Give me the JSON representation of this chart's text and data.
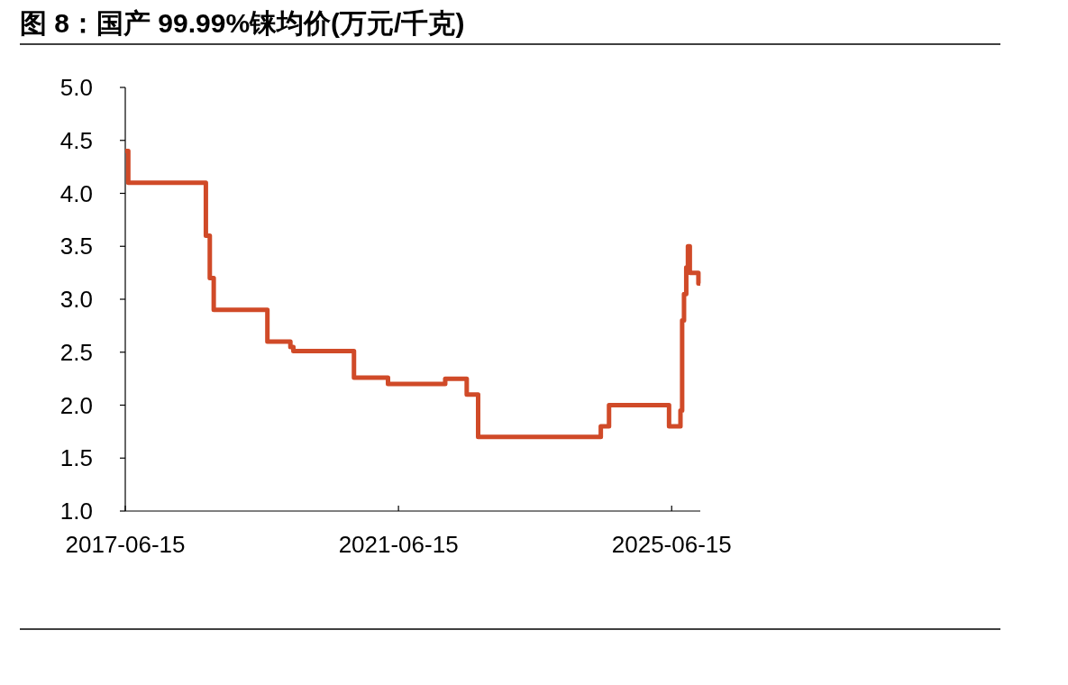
{
  "chart_data": {
    "type": "step",
    "title": "图 8：国产 99.99%铼均价(万元/千克)",
    "x": [
      "2017-06-15",
      "2017-07-01",
      "2018-08-20",
      "2018-09-10",
      "2018-10-01",
      "2019-07-15",
      "2019-11-15",
      "2019-12-01",
      "2020-10-20",
      "2021-04-20",
      "2022-02-20",
      "2022-06-15",
      "2022-08-15",
      "2024-06-01",
      "2024-07-15",
      "2025-06-01",
      "2025-08-01",
      "2025-08-10",
      "2025-08-20",
      "2025-09-01",
      "2025-09-10",
      "2025-09-20",
      "2025-11-05"
    ],
    "series": [
      {
        "color": "#d04a28",
        "values": [
          4.4,
          4.1,
          3.6,
          3.2,
          2.9,
          2.6,
          2.55,
          2.51,
          2.26,
          2.2,
          2.25,
          2.1,
          1.7,
          1.8,
          2.0,
          1.8,
          1.95,
          2.8,
          3.05,
          3.3,
          3.5,
          3.25,
          3.15
        ]
      }
    ],
    "xlim": [
      "2017-06-15",
      "2025-11-15"
    ],
    "xticks": [
      {
        "value": "2017-06-15",
        "label": "2017-06-15"
      },
      {
        "value": "2021-06-15",
        "label": "2021-06-15"
      },
      {
        "value": "2025-06-15",
        "label": "2025-06-15"
      }
    ],
    "ylim": [
      1,
      5
    ],
    "yticks": [
      {
        "value": 1,
        "label": "1.0"
      },
      {
        "value": 1.5,
        "label": "1.5"
      },
      {
        "value": 2,
        "label": "2.0"
      },
      {
        "value": 2.5,
        "label": "2.5"
      },
      {
        "value": 3,
        "label": "3.0"
      },
      {
        "value": 3.5,
        "label": "3.5"
      },
      {
        "value": 4,
        "label": "4.0"
      },
      {
        "value": 4.5,
        "label": "4.5"
      },
      {
        "value": 5,
        "label": "5.0"
      }
    ]
  }
}
